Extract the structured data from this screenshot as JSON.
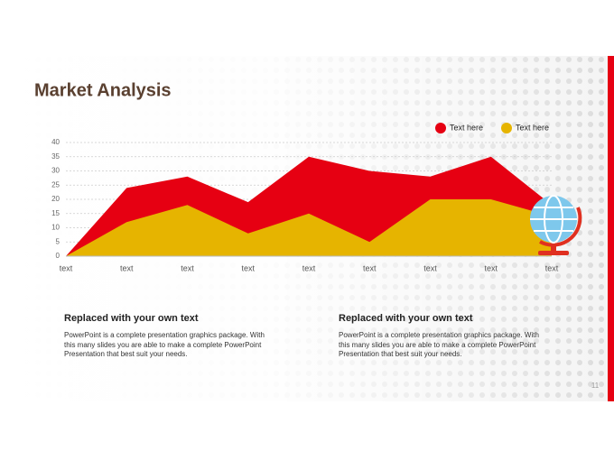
{
  "slide": {
    "title": "Market Analysis",
    "columns": [
      {
        "heading": "Replaced with your own text",
        "lines": [
          "PowerPoint is a complete presentation graphics package. With",
          "this many slides you are able to make a complete PowerPoint",
          "Presentation that best suit your needs."
        ]
      },
      {
        "heading": "Replaced with your own text",
        "lines": [
          "PowerPoint is a complete presentation graphics package. With",
          "this many slides you are able to make a complete PowerPoint",
          "Presentation that best suit your needs."
        ]
      }
    ],
    "page_number": "11"
  },
  "chart_data": {
    "type": "area",
    "categories": [
      "text",
      "text",
      "text",
      "text",
      "text",
      "text",
      "text",
      "text",
      "text"
    ],
    "series": [
      {
        "name": "Text here",
        "color": "#e60012",
        "values": [
          0,
          24,
          28,
          19,
          35,
          30,
          28,
          35,
          18
        ]
      },
      {
        "name": "Text here",
        "color": "#e6b400",
        "values": [
          0,
          12,
          18,
          8,
          15,
          5,
          20,
          20,
          14
        ]
      }
    ],
    "ylim": [
      0,
      40
    ],
    "yticks": [
      0,
      5,
      10,
      15,
      20,
      25,
      30,
      35,
      40
    ],
    "grid": true,
    "legend": "top-right"
  }
}
